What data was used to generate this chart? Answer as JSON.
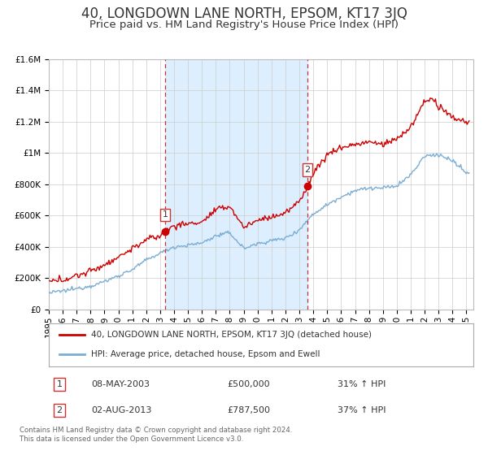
{
  "title": "40, LONGDOWN LANE NORTH, EPSOM, KT17 3JQ",
  "subtitle": "Price paid vs. HM Land Registry's House Price Index (HPI)",
  "ylim": [
    0,
    1600000
  ],
  "yticks": [
    0,
    200000,
    400000,
    600000,
    800000,
    1000000,
    1200000,
    1400000,
    1600000
  ],
  "ytick_labels": [
    "£0",
    "£200K",
    "£400K",
    "£600K",
    "£800K",
    "£1M",
    "£1.2M",
    "£1.4M",
    "£1.6M"
  ],
  "xlim_start": 1995.0,
  "xlim_end": 2025.5,
  "sale1_year": 2003.354,
  "sale1_price": 500000,
  "sale2_year": 2013.583,
  "sale2_price": 787500,
  "line1_color": "#cc0000",
  "line2_color": "#7aadd4",
  "shading_color": "#ddeeff",
  "marker_color": "#cc0000",
  "grid_color": "#cccccc",
  "bg_color": "#ffffff",
  "title_fontsize": 12,
  "subtitle_fontsize": 9.5,
  "tick_fontsize": 7.5,
  "legend_label1": "40, LONGDOWN LANE NORTH, EPSOM, KT17 3JQ (detached house)",
  "legend_label2": "HPI: Average price, detached house, Epsom and Ewell",
  "note1_num": "1",
  "note1_date": "08-MAY-2003",
  "note1_price": "£500,000",
  "note1_hpi": "31% ↑ HPI",
  "note2_num": "2",
  "note2_date": "02-AUG-2013",
  "note2_price": "£787,500",
  "note2_hpi": "37% ↑ HPI",
  "footer1": "Contains HM Land Registry data © Crown copyright and database right 2024.",
  "footer2": "This data is licensed under the Open Government Licence v3.0."
}
